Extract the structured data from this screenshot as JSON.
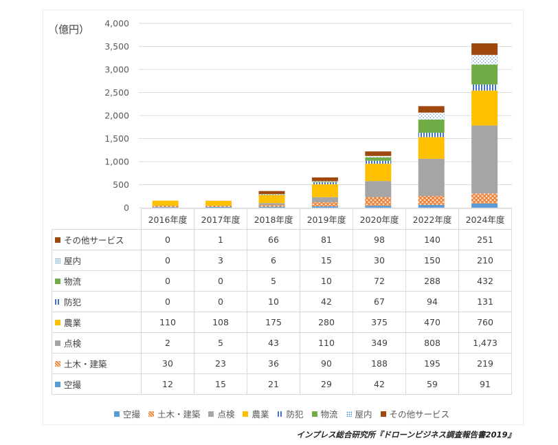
{
  "chart_data": {
    "type": "bar",
    "stacked": true,
    "unit_label": "（億円）",
    "categories": [
      "2016年度",
      "2017年度",
      "2018年度",
      "2019年度",
      "2020年度",
      "2022年度",
      "2024年度"
    ],
    "ylim": [
      0,
      4000
    ],
    "yticks": [
      0,
      500,
      1000,
      1500,
      2000,
      2500,
      3000,
      3500,
      4000
    ],
    "ytick_labels": [
      "0",
      "500",
      "1,000",
      "1,500",
      "2,000",
      "2,500",
      "3,000",
      "3,500",
      "4,000"
    ],
    "grid": true,
    "legend_position": "bottom",
    "series": [
      {
        "name": "空撮",
        "color": "#5b9bd5",
        "pattern": "solid",
        "values": [
          12,
          15,
          21,
          29,
          42,
          59,
          91
        ]
      },
      {
        "name": "土木・建築",
        "color": "#ed7d31",
        "pattern": "crosshatch",
        "values": [
          30,
          23,
          36,
          90,
          188,
          195,
          219
        ]
      },
      {
        "name": "点検",
        "color": "#a5a5a5",
        "pattern": "solid",
        "values": [
          2,
          5,
          43,
          110,
          349,
          808,
          1473
        ]
      },
      {
        "name": "農業",
        "color": "#ffc000",
        "pattern": "solid",
        "values": [
          110,
          108,
          175,
          280,
          375,
          470,
          760
        ]
      },
      {
        "name": "防犯",
        "color": "#4472c4",
        "pattern": "vertical-stripes",
        "values": [
          0,
          0,
          10,
          42,
          67,
          94,
          131
        ]
      },
      {
        "name": "物流",
        "color": "#70ad47",
        "pattern": "solid",
        "values": [
          0,
          0,
          5,
          10,
          72,
          288,
          432
        ]
      },
      {
        "name": "屋内",
        "color": "#5b9bd5",
        "pattern": "dots",
        "values": [
          0,
          3,
          6,
          15,
          30,
          150,
          210
        ]
      },
      {
        "name": "その他サービス",
        "color": "#9e480e",
        "pattern": "solid",
        "values": [
          0,
          1,
          66,
          81,
          98,
          140,
          251
        ]
      }
    ],
    "table_display_values": {
      "その他サービス": [
        "0",
        "1",
        "66",
        "81",
        "98",
        "140",
        "251"
      ],
      "屋内": [
        "0",
        "3",
        "6",
        "15",
        "30",
        "150",
        "210"
      ],
      "物流": [
        "0",
        "0",
        "5",
        "10",
        "72",
        "288",
        "432"
      ],
      "防犯": [
        "0",
        "0",
        "10",
        "42",
        "67",
        "94",
        "131"
      ],
      "農業": [
        "110",
        "108",
        "175",
        "280",
        "375",
        "470",
        "760"
      ],
      "点検": [
        "2",
        "5",
        "43",
        "110",
        "349",
        "808",
        "1,473"
      ],
      "土木・建築": [
        "30",
        "23",
        "36",
        "90",
        "188",
        "195",
        "219"
      ],
      "空撮": [
        "12",
        "15",
        "21",
        "29",
        "42",
        "59",
        "91"
      ]
    },
    "table_row_order": [
      "その他サービス",
      "屋内",
      "物流",
      "防犯",
      "農業",
      "点検",
      "土木・建築",
      "空撮"
    ]
  },
  "source": "インプレス総合研究所『ドローンビジネス調査報告書2019』"
}
